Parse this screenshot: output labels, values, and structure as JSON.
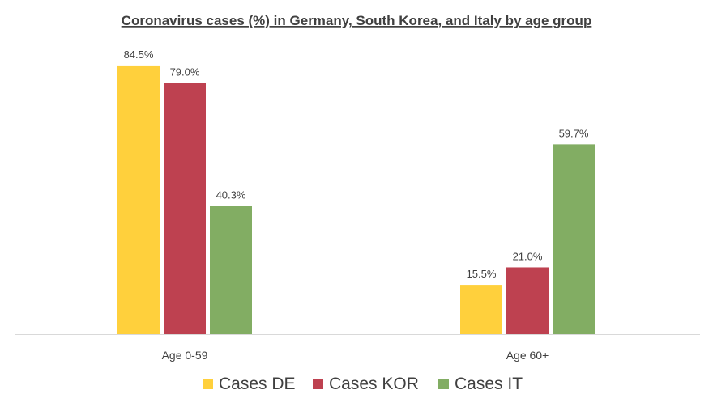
{
  "chart_data": {
    "type": "bar",
    "title": "Coronavirus cases (%) in Germany, South Korea, and Italy by age group",
    "categories": [
      "Age 0-59",
      "Age 60+"
    ],
    "series": [
      {
        "name": "Cases DE",
        "values": [
          84.5,
          15.5
        ],
        "labels": [
          "84.5%",
          "15.5%"
        ],
        "color": "#FFD03C"
      },
      {
        "name": "Cases KOR",
        "values": [
          79.0,
          21.0
        ],
        "labels": [
          "79.0%",
          "21.0%"
        ],
        "color": "#BE4150"
      },
      {
        "name": "Cases IT",
        "values": [
          40.3,
          59.7
        ],
        "labels": [
          "40.3%",
          "59.7%"
        ],
        "color": "#82AD63"
      }
    ],
    "ylim": [
      0,
      100
    ],
    "grid": false,
    "legend": "bottom",
    "axis_color": "#D9D9D9"
  }
}
